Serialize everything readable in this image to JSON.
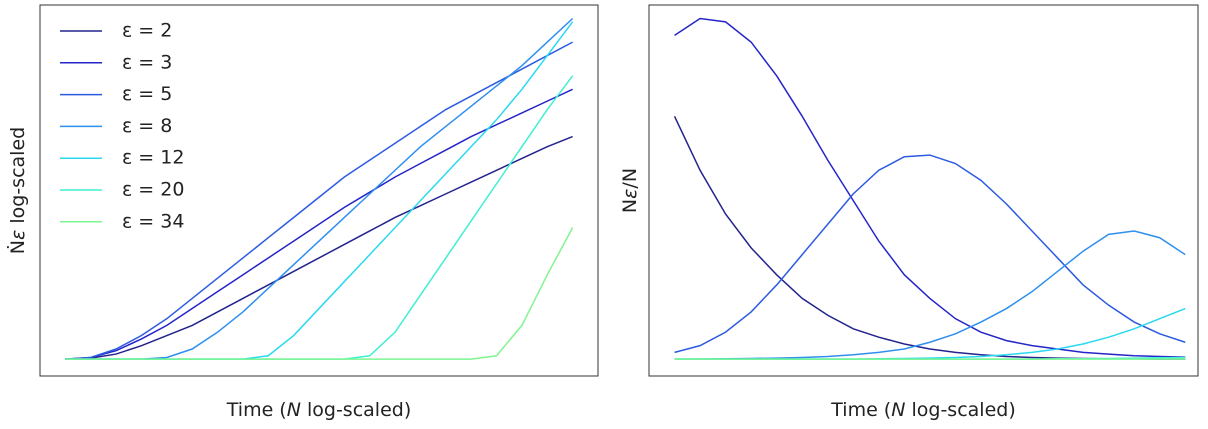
{
  "chart_data": [
    {
      "type": "line",
      "x_label": [
        "Time (",
        "N",
        " log-scaled)"
      ],
      "y_label": [
        "Ṅ",
        "ε",
        " log-scaled"
      ],
      "legend": "upper left",
      "xlim": [
        -0.05,
        1.05
      ],
      "ylim": [
        -0.05,
        1.05
      ],
      "x": [
        0,
        0.05,
        0.1,
        0.15,
        0.2,
        0.25,
        0.3,
        0.35,
        0.4,
        0.45,
        0.5,
        0.55,
        0.6,
        0.65,
        0.7,
        0.75,
        0.8,
        0.85,
        0.9,
        0.95,
        1
      ],
      "series": [
        {
          "name": "ε = 2",
          "color": "#23238e",
          "values": [
            0,
            0.003,
            0.015,
            0.04,
            0.07,
            0.1,
            0.14,
            0.18,
            0.22,
            0.26,
            0.3,
            0.34,
            0.38,
            0.42,
            0.455,
            0.49,
            0.525,
            0.56,
            0.595,
            0.63,
            0.66
          ]
        },
        {
          "name": "ε = 3",
          "color": "#2525c8",
          "values": [
            0,
            0.005,
            0.025,
            0.06,
            0.1,
            0.15,
            0.2,
            0.25,
            0.3,
            0.35,
            0.4,
            0.45,
            0.495,
            0.54,
            0.58,
            0.62,
            0.66,
            0.695,
            0.73,
            0.765,
            0.8
          ]
        },
        {
          "name": "ε = 5",
          "color": "#2d5be0",
          "values": [
            0,
            0.005,
            0.03,
            0.07,
            0.12,
            0.18,
            0.24,
            0.3,
            0.36,
            0.42,
            0.48,
            0.54,
            0.59,
            0.64,
            0.69,
            0.74,
            0.78,
            0.82,
            0.86,
            0.9,
            0.94
          ]
        },
        {
          "name": "ε = 8",
          "color": "#2f8fef",
          "values": [
            0,
            0,
            0,
            0,
            0.005,
            0.03,
            0.08,
            0.14,
            0.21,
            0.28,
            0.35,
            0.42,
            0.49,
            0.56,
            0.63,
            0.69,
            0.75,
            0.81,
            0.87,
            0.94,
            1.01
          ]
        },
        {
          "name": "ε = 12",
          "color": "#29d9f0",
          "values": [
            0,
            0,
            0,
            0,
            0,
            0,
            0,
            0,
            0.01,
            0.07,
            0.15,
            0.23,
            0.31,
            0.39,
            0.47,
            0.55,
            0.63,
            0.71,
            0.8,
            0.9,
            1.0
          ]
        },
        {
          "name": "ε = 20",
          "color": "#3ff0d0",
          "values": [
            0,
            0,
            0,
            0,
            0,
            0,
            0,
            0,
            0,
            0,
            0,
            0,
            0.01,
            0.08,
            0.19,
            0.3,
            0.41,
            0.52,
            0.63,
            0.74,
            0.84
          ]
        },
        {
          "name": "ε = 34",
          "color": "#7ef590",
          "values": [
            0,
            0,
            0,
            0,
            0,
            0,
            0,
            0,
            0,
            0,
            0,
            0,
            0,
            0,
            0,
            0,
            0,
            0.01,
            0.1,
            0.25,
            0.39
          ]
        }
      ]
    },
    {
      "type": "line",
      "x_label": [
        "Time (",
        "N",
        " log-scaled)"
      ],
      "y_label": [
        "N",
        "ε",
        "/N"
      ],
      "xlim": [
        -0.05,
        1.025
      ],
      "ylim": [
        -0.05,
        1.05
      ],
      "x": [
        0,
        0.05,
        0.1,
        0.15,
        0.2,
        0.25,
        0.3,
        0.35,
        0.4,
        0.45,
        0.5,
        0.55,
        0.6,
        0.65,
        0.7,
        0.75,
        0.8,
        0.85,
        0.9,
        0.95,
        1
      ],
      "series": [
        {
          "color": "#23238e",
          "values": [
            0.72,
            0.56,
            0.43,
            0.33,
            0.25,
            0.18,
            0.13,
            0.09,
            0.065,
            0.045,
            0.03,
            0.02,
            0.013,
            0.008,
            0.005,
            0.003,
            0.002,
            0.001,
            0.001,
            0,
            0
          ]
        },
        {
          "color": "#2525c8",
          "values": [
            0.96,
            1.01,
            1.0,
            0.94,
            0.84,
            0.72,
            0.59,
            0.47,
            0.35,
            0.25,
            0.18,
            0.12,
            0.08,
            0.055,
            0.04,
            0.03,
            0.02,
            0.015,
            0.01,
            0.008,
            0.006
          ]
        },
        {
          "color": "#2d5be0",
          "values": [
            0.02,
            0.04,
            0.08,
            0.14,
            0.22,
            0.31,
            0.4,
            0.49,
            0.56,
            0.6,
            0.605,
            0.58,
            0.53,
            0.46,
            0.38,
            0.3,
            0.22,
            0.16,
            0.11,
            0.075,
            0.05
          ]
        },
        {
          "color": "#2f8fef",
          "values": [
            0,
            0,
            0.001,
            0.002,
            0.003,
            0.005,
            0.008,
            0.013,
            0.02,
            0.03,
            0.05,
            0.075,
            0.11,
            0.15,
            0.2,
            0.26,
            0.32,
            0.37,
            0.38,
            0.36,
            0.31
          ]
        },
        {
          "color": "#29d9f0",
          "values": [
            0,
            0,
            0,
            0,
            0,
            0,
            0,
            0,
            0.001,
            0.002,
            0.003,
            0.005,
            0.008,
            0.013,
            0.02,
            0.03,
            0.045,
            0.065,
            0.09,
            0.12,
            0.15
          ]
        },
        {
          "color": "#3ff0d0",
          "values": [
            0,
            0,
            0,
            0,
            0,
            0,
            0,
            0,
            0,
            0,
            0,
            0,
            0,
            0,
            0,
            0.001,
            0.001,
            0.002,
            0.003,
            0.004,
            0.005
          ]
        },
        {
          "color": "#7ef590",
          "values": [
            0,
            0,
            0,
            0,
            0,
            0,
            0,
            0,
            0,
            0,
            0,
            0,
            0,
            0,
            0,
            0,
            0,
            0,
            0,
            0,
            0
          ]
        }
      ]
    }
  ]
}
